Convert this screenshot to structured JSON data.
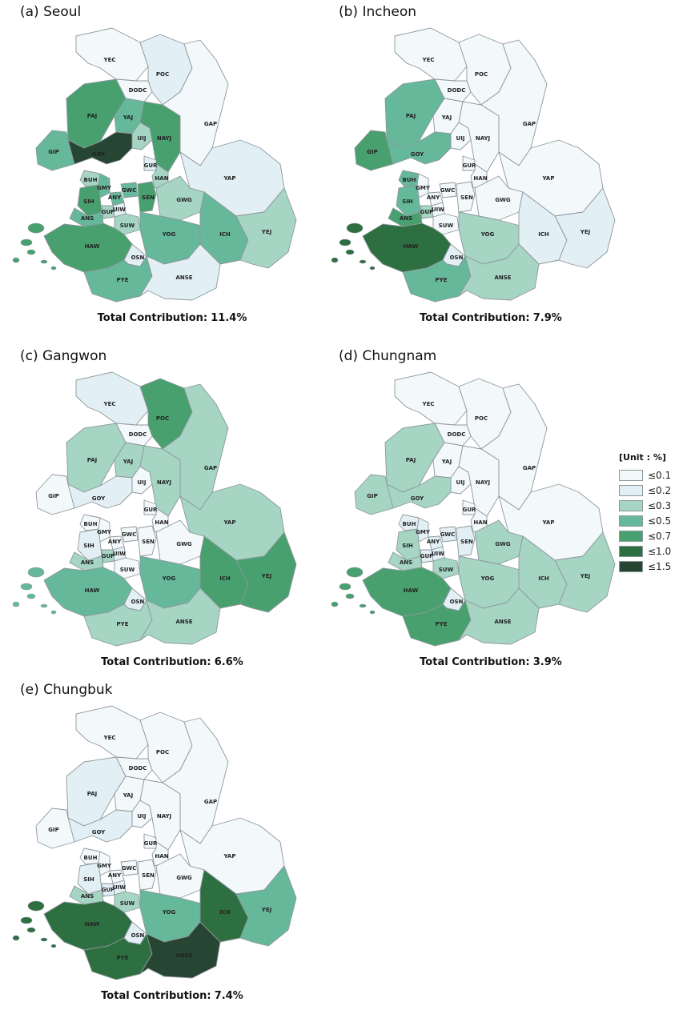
{
  "legend": {
    "title": "[Unit : %]",
    "classes": [
      {
        "label": "≤0.1",
        "color": "#f3f8fb"
      },
      {
        "label": "≤0.2",
        "color": "#e2eff5"
      },
      {
        "label": "≤0.3",
        "color": "#a6d5c4"
      },
      {
        "label": "≤0.5",
        "color": "#66b89a"
      },
      {
        "label": "≤0.7",
        "color": "#48a06e"
      },
      {
        "label": "≤1.0",
        "color": "#2d6f41"
      },
      {
        "label": "≤1.5",
        "color": "#264532"
      }
    ]
  },
  "total_label": "Total Contribution:",
  "region_codes": [
    "YEC",
    "POC",
    "DODC",
    "PAJ",
    "YAJ",
    "GAP",
    "UIJ",
    "GIP",
    "GOY",
    "NAYJ",
    "GUR",
    "HAN",
    "YAP",
    "BUH",
    "GMY",
    "ANY",
    "GWC",
    "SEN",
    "SIH",
    "GUP",
    "UIW",
    "GWG",
    "ANS",
    "SUW",
    "YOG",
    "ICH",
    "YEJ",
    "HAW",
    "OSN",
    "PYE",
    "ANSE"
  ],
  "panels": [
    {
      "title": "(a) Seoul",
      "total": "11.4%",
      "classes": {
        "YEC": 0,
        "POC": 1,
        "DODC": 0,
        "PAJ": 4,
        "YAJ": 3,
        "GAP": 0,
        "UIJ": 2,
        "GIP": 3,
        "GOY": 6,
        "NAYJ": 4,
        "GUR": 1,
        "HAN": 2,
        "YAP": 1,
        "BUH": 2,
        "GMY": 3,
        "ANY": 3,
        "GWC": 3,
        "SEN": 4,
        "SIH": 4,
        "GUP": 2,
        "UIW": 1,
        "GWG": 2,
        "ANS": 3,
        "SUW": 2,
        "YOG": 3,
        "ICH": 3,
        "YEJ": 2,
        "HAW": 4,
        "OSN": 1,
        "PYE": 3,
        "ANSE": 1
      }
    },
    {
      "title": "(b) Incheon",
      "total": "7.9%",
      "classes": {
        "YEC": 0,
        "POC": 0,
        "DODC": 0,
        "PAJ": 3,
        "YAJ": 0,
        "GAP": 0,
        "UIJ": 0,
        "GIP": 4,
        "GOY": 3,
        "NAYJ": 0,
        "GUR": 0,
        "HAN": 0,
        "YAP": 0,
        "BUH": 3,
        "GMY": 0,
        "ANY": 0,
        "GWC": 0,
        "SEN": 0,
        "SIH": 3,
        "GUP": 2,
        "UIW": 0,
        "GWG": 0,
        "ANS": 4,
        "SUW": 0,
        "YOG": 2,
        "ICH": 1,
        "YEJ": 1,
        "HAW": 5,
        "OSN": 1,
        "PYE": 3,
        "ANSE": 2
      }
    },
    {
      "title": "(c) Gangwon",
      "total": "6.6%",
      "classes": {
        "YEC": 1,
        "POC": 4,
        "DODC": 0,
        "PAJ": 2,
        "YAJ": 2,
        "GAP": 2,
        "UIJ": 0,
        "GIP": 0,
        "GOY": 1,
        "NAYJ": 2,
        "GUR": 0,
        "HAN": 0,
        "YAP": 2,
        "BUH": 0,
        "GMY": 0,
        "ANY": 0,
        "GWC": 0,
        "SEN": 0,
        "SIH": 1,
        "GUP": 2,
        "UIW": 1,
        "GWG": 0,
        "ANS": 2,
        "SUW": 0,
        "YOG": 3,
        "ICH": 4,
        "YEJ": 4,
        "HAW": 3,
        "OSN": 1,
        "PYE": 2,
        "ANSE": 2
      }
    },
    {
      "title": "(d) Chungnam",
      "total": "3.9%",
      "classes": {
        "YEC": 0,
        "POC": 0,
        "DODC": 0,
        "PAJ": 2,
        "YAJ": 0,
        "GAP": 0,
        "UIJ": 0,
        "GIP": 2,
        "GOY": 2,
        "NAYJ": 0,
        "GUR": 0,
        "HAN": 0,
        "YAP": 0,
        "BUH": 1,
        "GMY": 1,
        "ANY": 1,
        "GWC": 1,
        "SEN": 1,
        "SIH": 2,
        "GUP": 1,
        "UIW": 1,
        "GWG": 2,
        "ANS": 2,
        "SUW": 2,
        "YOG": 2,
        "ICH": 2,
        "YEJ": 2,
        "HAW": 4,
        "OSN": 1,
        "PYE": 4,
        "ANSE": 2
      }
    },
    {
      "title": "(e) Chungbuk",
      "total": "7.4%",
      "classes": {
        "YEC": 0,
        "POC": 0,
        "DODC": 0,
        "PAJ": 1,
        "YAJ": 0,
        "GAP": 0,
        "UIJ": 0,
        "GIP": 0,
        "GOY": 1,
        "NAYJ": 0,
        "GUR": 0,
        "HAN": 0,
        "YAP": 0,
        "BUH": 0,
        "GMY": 0,
        "ANY": 0,
        "GWC": 0,
        "SEN": 0,
        "SIH": 1,
        "GUP": 1,
        "UIW": 1,
        "GWG": 0,
        "ANS": 2,
        "SUW": 2,
        "YOG": 3,
        "ICH": 5,
        "YEJ": 3,
        "HAW": 5,
        "OSN": 1,
        "PYE": 5,
        "ANSE": 6
      }
    }
  ]
}
